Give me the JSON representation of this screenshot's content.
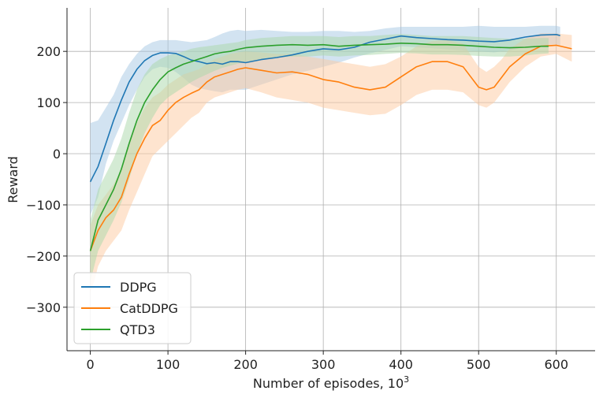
{
  "chart_data": {
    "type": "line",
    "xlabel": "Number of episodes, 10",
    "xlabel_sup": "3",
    "ylabel": "Reward",
    "xlim": [
      -30,
      650
    ],
    "ylim": [
      -385,
      285
    ],
    "xticks": [
      0,
      100,
      200,
      300,
      400,
      500,
      600
    ],
    "yticks": [
      -300,
      -200,
      -100,
      0,
      100,
      200
    ],
    "ytick_labels": [
      "−300",
      "−200",
      "−100",
      "0",
      "100",
      "200"
    ],
    "grid": true,
    "legend_position": "lower-left",
    "series": [
      {
        "name": "DDPG",
        "color": "#1f77b4",
        "band_color": "#a6c8e4",
        "x": [
          0,
          10,
          20,
          30,
          40,
          50,
          60,
          70,
          80,
          90,
          100,
          110,
          120,
          130,
          140,
          150,
          160,
          170,
          180,
          190,
          200,
          220,
          240,
          260,
          280,
          300,
          320,
          340,
          360,
          380,
          400,
          420,
          440,
          460,
          480,
          500,
          520,
          540,
          560,
          580,
          600,
          605
        ],
        "y": [
          -55,
          -25,
          20,
          65,
          105,
          140,
          165,
          182,
          192,
          197,
          197,
          196,
          190,
          183,
          180,
          176,
          178,
          175,
          180,
          180,
          178,
          184,
          188,
          193,
          200,
          205,
          203,
          208,
          218,
          224,
          230,
          227,
          225,
          223,
          222,
          220,
          219,
          222,
          228,
          232,
          233,
          231
        ],
        "lower": [
          -120,
          -85,
          -20,
          25,
          60,
          95,
          125,
          150,
          165,
          170,
          168,
          160,
          148,
          135,
          128,
          125,
          122,
          120,
          125,
          125,
          125,
          135,
          145,
          155,
          162,
          170,
          178,
          188,
          196,
          203,
          210,
          208,
          206,
          204,
          202,
          200,
          198,
          202,
          208,
          212,
          214,
          212
        ],
        "upper": [
          60,
          65,
          90,
          115,
          150,
          175,
          195,
          210,
          218,
          222,
          222,
          222,
          220,
          218,
          220,
          222,
          228,
          235,
          240,
          242,
          240,
          242,
          240,
          238,
          238,
          240,
          240,
          238,
          240,
          245,
          248,
          248,
          248,
          248,
          248,
          250,
          248,
          248,
          248,
          250,
          250,
          248
        ]
      },
      {
        "name": "CatDDPG",
        "color": "#ff7f0e",
        "band_color": "#fdc9a0",
        "x": [
          0,
          5,
          10,
          20,
          30,
          40,
          50,
          60,
          70,
          80,
          90,
          100,
          110,
          120,
          130,
          140,
          150,
          160,
          170,
          180,
          190,
          200,
          220,
          240,
          260,
          280,
          300,
          320,
          340,
          360,
          380,
          400,
          420,
          440,
          460,
          480,
          500,
          510,
          520,
          530,
          540,
          560,
          580,
          600,
          620
        ],
        "y": [
          -190,
          -170,
          -150,
          -125,
          -110,
          -85,
          -40,
          0,
          30,
          55,
          65,
          85,
          100,
          110,
          118,
          125,
          140,
          150,
          155,
          160,
          165,
          168,
          163,
          158,
          160,
          155,
          145,
          140,
          130,
          125,
          130,
          150,
          170,
          180,
          180,
          170,
          130,
          125,
          130,
          150,
          170,
          195,
          210,
          212,
          205
        ],
        "lower": [
          -270,
          -250,
          -220,
          -190,
          -170,
          -150,
          -110,
          -75,
          -40,
          -5,
          10,
          25,
          40,
          55,
          70,
          80,
          100,
          110,
          115,
          120,
          125,
          128,
          120,
          110,
          105,
          100,
          90,
          85,
          80,
          75,
          78,
          95,
          115,
          125,
          125,
          120,
          95,
          90,
          100,
          120,
          140,
          170,
          190,
          195,
          180
        ],
        "upper": [
          -140,
          -120,
          -100,
          -80,
          -60,
          -30,
          20,
          60,
          90,
          110,
          120,
          135,
          145,
          155,
          160,
          165,
          175,
          185,
          190,
          195,
          198,
          200,
          198,
          195,
          195,
          190,
          185,
          180,
          175,
          170,
          175,
          190,
          210,
          220,
          222,
          215,
          170,
          160,
          170,
          185,
          205,
          225,
          235,
          235,
          232
        ]
      },
      {
        "name": "QTD3",
        "color": "#2ca02c",
        "band_color": "#a9d8a9",
        "x": [
          0,
          5,
          10,
          20,
          30,
          40,
          50,
          60,
          70,
          80,
          90,
          100,
          110,
          120,
          130,
          140,
          150,
          160,
          170,
          180,
          190,
          200,
          220,
          240,
          260,
          280,
          300,
          320,
          340,
          360,
          380,
          400,
          420,
          440,
          460,
          480,
          500,
          520,
          540,
          560,
          580,
          590
        ],
        "y": [
          -190,
          -160,
          -130,
          -100,
          -70,
          -30,
          20,
          65,
          100,
          125,
          145,
          160,
          168,
          175,
          180,
          185,
          190,
          195,
          198,
          200,
          204,
          207,
          210,
          212,
          213,
          212,
          213,
          210,
          212,
          213,
          214,
          216,
          215,
          213,
          213,
          212,
          210,
          208,
          207,
          208,
          210,
          210
        ],
        "lower": [
          -250,
          -220,
          -190,
          -160,
          -130,
          -95,
          -50,
          0,
          40,
          70,
          95,
          110,
          120,
          130,
          140,
          148,
          155,
          162,
          168,
          172,
          176,
          180,
          185,
          188,
          190,
          190,
          192,
          190,
          192,
          193,
          195,
          197,
          196,
          194,
          194,
          193,
          191,
          190,
          190,
          192,
          195,
          196
        ],
        "upper": [
          -130,
          -100,
          -70,
          -40,
          -10,
          30,
          80,
          125,
          155,
          175,
          185,
          192,
          196,
          200,
          205,
          208,
          210,
          212,
          214,
          216,
          218,
          222,
          226,
          228,
          230,
          230,
          230,
          228,
          230,
          230,
          232,
          234,
          232,
          230,
          230,
          230,
          228,
          226,
          225,
          225,
          226,
          226
        ]
      }
    ]
  }
}
